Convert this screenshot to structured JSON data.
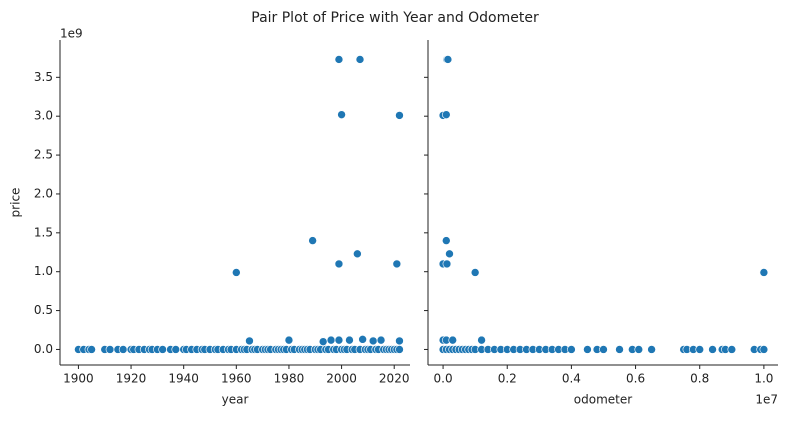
{
  "title": "Pair Plot of Price with Year and Odometer",
  "chart_data": [
    {
      "type": "scatter",
      "x_label": "year",
      "y_label": "price",
      "y_offset": "1e9",
      "color": "#1f77b4",
      "xlim": [
        1893,
        2026
      ],
      "xticks": [
        1900,
        1920,
        1940,
        1960,
        1980,
        2000,
        2020
      ],
      "ylim": [
        -0.2,
        3.98
      ],
      "yticks": [
        {
          "value": 0,
          "label": "0.0"
        },
        0.5,
        {
          "value": 1,
          "label": "1.0"
        },
        1.5,
        {
          "value": 2,
          "label": "2.0"
        },
        2.5,
        {
          "value": 3,
          "label": "3.0"
        },
        3.5
      ],
      "x": [
        1900,
        1902,
        1904,
        1905,
        1910,
        1912,
        1915,
        1917,
        1920,
        1921,
        1923,
        1925,
        1927,
        1928,
        1930,
        1932,
        1935,
        1937,
        1940,
        1941,
        1943,
        1945,
        1947,
        1948,
        1950,
        1952,
        1953,
        1955,
        1957,
        1958,
        1960,
        1962,
        1963,
        1964,
        1966,
        1967,
        1968,
        1970,
        1971,
        1972,
        1973,
        1975,
        1976,
        1977,
        1978,
        1979,
        1981,
        1982,
        1984,
        1985,
        1986,
        1987,
        1988,
        1990,
        1991,
        1992,
        1994,
        1995,
        1997,
        1998,
        2000,
        2001,
        2002,
        2004,
        2005,
        2007,
        2009,
        2010,
        2011,
        2013,
        2014,
        2016,
        2017,
        2018,
        2019,
        2020,
        2021,
        2022,
        1960,
        1965,
        1980,
        1989,
        1993,
        1996,
        1999,
        1999,
        2000,
        1999,
        2003,
        2006,
        2007,
        2008,
        2012,
        2015,
        2021,
        2022,
        2022
      ],
      "values": [
        0,
        0,
        0,
        0,
        0,
        0,
        0,
        0,
        0,
        0,
        0,
        0,
        0,
        0,
        0,
        0,
        0,
        0,
        0,
        0,
        0,
        0,
        0,
        0,
        0,
        0,
        0,
        0,
        0,
        0,
        0,
        0,
        0,
        0,
        0,
        0,
        0,
        0,
        0,
        0,
        0,
        0,
        0,
        0,
        0,
        0,
        0,
        0,
        0,
        0,
        0,
        0,
        0,
        0,
        0,
        0,
        0,
        0,
        0,
        0,
        0,
        0,
        0,
        0,
        0,
        0,
        0,
        0,
        0,
        0,
        0,
        0,
        0,
        0,
        0,
        0,
        0,
        0,
        0.99,
        0.11,
        0.12,
        1.4,
        0.1,
        0.12,
        0.12,
        3.73,
        3.02,
        1.1,
        0.12,
        1.23,
        3.73,
        0.13,
        0.11,
        0.12,
        1.1,
        3.01,
        0.11
      ]
    },
    {
      "type": "scatter",
      "x_label": "odometer",
      "x_offset": "1e7",
      "color": "#1f77b4",
      "xlim": [
        -0.047,
        1.044
      ],
      "xticks": [
        {
          "value": 0,
          "label": "0.0"
        },
        0.2,
        0.4,
        0.6,
        0.8,
        {
          "value": 1,
          "label": "1.0"
        }
      ],
      "ylim": [
        -0.2,
        3.98
      ],
      "yticks": [
        0,
        0.5,
        1,
        1.5,
        2,
        2.5,
        3,
        3.5
      ],
      "x": [
        0,
        0.01,
        0.02,
        0.03,
        0.04,
        0.05,
        0.06,
        0.07,
        0.08,
        0.09,
        0.1,
        0.12,
        0.14,
        0.16,
        0.18,
        0.2,
        0.22,
        0.24,
        0.26,
        0.28,
        0.3,
        0.32,
        0.34,
        0.36,
        0.38,
        0.4,
        0.45,
        0.48,
        0.5,
        0.55,
        0.59,
        0.61,
        0.65,
        0.75,
        0.76,
        0.78,
        0.8,
        0.84,
        0.87,
        0.88,
        0.9,
        0.97,
        0.99,
        1.0,
        0.0,
        0.01,
        0.012,
        0.015,
        0.01,
        0.02,
        0.0,
        0.012,
        0.1,
        1.0,
        0.0,
        0.01,
        0.03,
        0.12
      ],
      "values": [
        0,
        0,
        0,
        0,
        0,
        0,
        0,
        0,
        0,
        0,
        0,
        0,
        0,
        0,
        0,
        0,
        0,
        0,
        0,
        0,
        0,
        0,
        0,
        0,
        0,
        0,
        0,
        0,
        0,
        0,
        0,
        0,
        0,
        0,
        0,
        0,
        0,
        0,
        0,
        0,
        0,
        0,
        0,
        0,
        3.01,
        3.02,
        3.73,
        3.73,
        1.4,
        1.23,
        1.1,
        1.1,
        0.99,
        0.99,
        0.12,
        0.12,
        0.12,
        0.12
      ]
    }
  ]
}
